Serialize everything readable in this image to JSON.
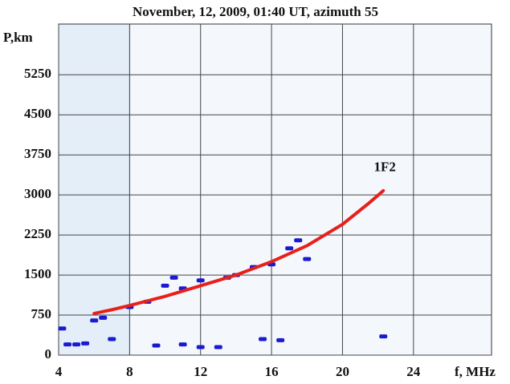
{
  "chart_data": {
    "type": "line",
    "title": "November, 12, 2009,  01:40 UT,  azimuth 55",
    "x_label": "f, MHz",
    "y_label": "P,km",
    "xlim": [
      4,
      28.4
    ],
    "ylim": [
      0,
      6200
    ],
    "xticks": [
      4,
      8,
      12,
      16,
      20,
      24
    ],
    "yticks": [
      0,
      750,
      1500,
      2250,
      3000,
      3750,
      4500,
      5250
    ],
    "grid": true,
    "series": [
      {
        "name": "1F2",
        "color": "#e8201a",
        "style": "line",
        "x": [
          6,
          7,
          8,
          10,
          12,
          14,
          16,
          18,
          20,
          21.5,
          22.3
        ],
        "values": [
          780,
          850,
          930,
          1100,
          1300,
          1500,
          1750,
          2050,
          2450,
          2850,
          3080
        ]
      },
      {
        "color": "#1a1ad0",
        "style": "markers",
        "x": [
          4.2,
          4.5,
          5,
          5.5,
          6,
          6.5,
          7,
          8,
          9,
          9.5,
          10,
          10.5,
          11,
          11,
          12,
          12,
          13,
          13.5,
          14,
          15,
          15.5,
          16,
          16.5,
          17,
          17.5,
          18,
          22.3
        ],
        "values": [
          500,
          200,
          200,
          220,
          650,
          700,
          300,
          900,
          1000,
          180,
          1300,
          1450,
          1250,
          200,
          1400,
          150,
          150,
          1450,
          1500,
          1650,
          300,
          1700,
          280,
          2000,
          2150,
          1800,
          350
        ]
      }
    ]
  }
}
